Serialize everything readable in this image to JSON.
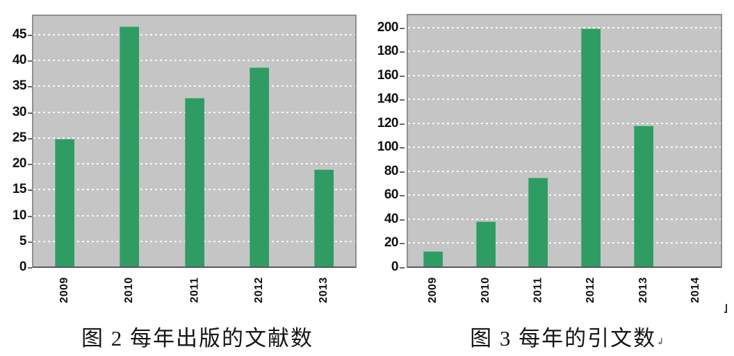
{
  "page": {
    "background": "#ffffff",
    "description_left": "bar chart of documents published per year",
    "description_right": "bar chart of citations per year"
  },
  "colors": {
    "bar_green": "#2f9c63",
    "plot_background": "#c5c5c5",
    "gridline_white": "#ffffff",
    "plot_border_gray": "#8f8f8f",
    "axis_dark": "#5a5a5a",
    "text": "#111111"
  },
  "artifacts": {
    "caption_return_mark": "↲"
  },
  "chart_data": [
    {
      "type": "bar",
      "title": "图 2 每年出版的文献数",
      "categories": [
        "2009",
        "2010",
        "2011",
        "2012",
        "2013"
      ],
      "values": [
        25,
        47,
        33,
        39,
        19
      ],
      "xlabel": "",
      "ylabel": "",
      "ylim": [
        0,
        49
      ],
      "yticks": [
        0,
        5,
        10,
        15,
        20,
        25,
        30,
        35,
        40,
        45
      ],
      "grid": true,
      "legend": false,
      "bar_color": "#2f9c63",
      "plot_bg": "#c5c5c5",
      "x_label_rotation": -90
    },
    {
      "type": "bar",
      "title": "图 3 每年的引文数",
      "categories": [
        "2009",
        "2010",
        "2011",
        "2012",
        "2013",
        "2014"
      ],
      "values": [
        13,
        38,
        75,
        201,
        119,
        0
      ],
      "xlabel": "",
      "ylabel": "",
      "ylim": [
        0,
        212
      ],
      "yticks": [
        0,
        20,
        40,
        60,
        80,
        100,
        120,
        140,
        160,
        180,
        200
      ],
      "grid": true,
      "legend": false,
      "bar_color": "#2f9c63",
      "plot_bg": "#c5c5c5",
      "x_label_rotation": -90
    }
  ]
}
